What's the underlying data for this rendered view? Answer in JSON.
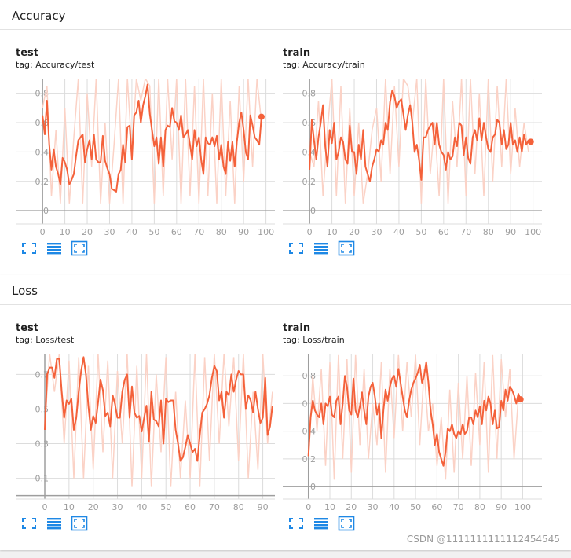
{
  "sections": [
    {
      "title": "Accuracy"
    },
    {
      "title": "Loss"
    }
  ],
  "colors": {
    "line": "#f4613a",
    "line_raw": "#fbd2c6",
    "grid": "#dcdcdc",
    "axis": "#9e9e9e",
    "icon": "#1e88e5"
  },
  "icons": [
    "fit-domain-icon",
    "toggle-log-scale-icon",
    "expand-chart-icon"
  ],
  "cards": [
    {
      "title": "test",
      "tag": "tag: Accuracy/test"
    },
    {
      "title": "train",
      "tag": "tag: Accuracy/train"
    },
    {
      "title": "test",
      "tag": "tag: Loss/test"
    },
    {
      "title": "train",
      "tag": "tag: Loss/train"
    }
  ],
  "watermark": "CSDN @1111111111112454545",
  "chart_data": [
    {
      "type": "line",
      "title": "test",
      "subtitle": "tag: Accuracy/test",
      "xlim": [
        -12,
        104
      ],
      "ylim": [
        -0.09,
        0.9
      ],
      "xticks": [
        0,
        10,
        20,
        30,
        40,
        50,
        60,
        70,
        80,
        90,
        100
      ],
      "yticks": [
        0,
        0.2,
        0.4,
        0.6,
        0.8
      ],
      "ytick_labels": [
        "0",
        "0.2",
        "0.4",
        "0.6",
        "0.8"
      ],
      "grid": true,
      "smoothed_x": [
        0,
        1,
        2,
        3,
        4,
        5,
        6,
        7,
        8,
        9,
        10,
        11,
        12,
        13,
        14,
        15,
        16,
        17,
        18,
        19,
        20,
        21,
        22,
        23,
        24,
        25,
        26,
        27,
        28,
        29,
        30,
        31,
        32,
        33,
        34,
        35,
        36,
        37,
        38,
        39,
        40,
        41,
        42,
        43,
        44,
        45,
        46,
        47,
        48,
        49,
        50,
        51,
        52,
        53,
        54,
        55,
        56,
        57,
        58,
        59,
        60,
        61,
        62,
        63,
        64,
        65,
        66,
        67,
        68,
        69,
        70,
        71,
        72,
        73,
        74,
        75,
        76,
        77,
        78,
        79,
        80,
        81,
        82,
        83,
        84,
        85,
        86,
        87,
        88,
        89,
        90,
        91,
        92,
        93,
        94,
        95,
        96,
        97,
        98
      ],
      "smoothed_y": [
        0.65,
        0.52,
        0.75,
        0.45,
        0.28,
        0.42,
        0.3,
        0.25,
        0.18,
        0.36,
        0.33,
        0.28,
        0.18,
        0.21,
        0.25,
        0.37,
        0.48,
        0.5,
        0.52,
        0.33,
        0.42,
        0.48,
        0.35,
        0.52,
        0.35,
        0.33,
        0.33,
        0.51,
        0.34,
        0.29,
        0.25,
        0.15,
        0.14,
        0.13,
        0.25,
        0.28,
        0.45,
        0.33,
        0.57,
        0.58,
        0.35,
        0.65,
        0.67,
        0.75,
        0.6,
        0.72,
        0.78,
        0.86,
        0.66,
        0.55,
        0.44,
        0.5,
        0.32,
        0.5,
        0.3,
        0.55,
        0.58,
        0.57,
        0.7,
        0.61,
        0.6,
        0.55,
        0.65,
        0.5,
        0.52,
        0.55,
        0.45,
        0.35,
        0.55,
        0.44,
        0.5,
        0.35,
        0.25,
        0.5,
        0.46,
        0.45,
        0.5,
        0.44,
        0.51,
        0.35,
        0.45,
        0.3,
        0.25,
        0.47,
        0.34,
        0.47,
        0.3,
        0.47,
        0.6,
        0.67,
        0.55,
        0.4,
        0.35,
        0.65,
        0.58,
        0.5,
        0.48,
        0.45,
        0.64
      ],
      "raw_x": [
        0,
        2,
        4,
        6,
        8,
        10,
        12,
        14,
        16,
        18,
        20,
        22,
        24,
        26,
        28,
        30,
        32,
        34,
        36,
        38,
        40,
        42,
        44,
        46,
        48,
        50,
        52,
        54,
        56,
        58,
        60,
        62,
        64,
        66,
        68,
        70,
        72,
        74,
        76,
        78,
        80,
        82,
        84,
        86,
        88,
        90,
        92,
        94,
        96,
        98
      ],
      "raw_y": [
        0.7,
        0.85,
        0.1,
        0.55,
        0.05,
        0.7,
        0.05,
        0.5,
        0.92,
        0.05,
        0.8,
        0.3,
        0.9,
        0.05,
        0.6,
        0.05,
        0.45,
        0.9,
        0.05,
        0.95,
        0.4,
        0.9,
        0.75,
        0.95,
        0.85,
        0.05,
        0.95,
        0.1,
        0.9,
        0.35,
        0.95,
        0.05,
        0.9,
        0.1,
        0.85,
        0.05,
        0.95,
        0.1,
        0.8,
        0.05,
        0.92,
        0.1,
        0.75,
        0.05,
        0.85,
        0.2,
        0.9,
        0.3,
        0.95,
        0.6
      ],
      "last_point": {
        "x": 98,
        "y": 0.64
      }
    },
    {
      "type": "line",
      "title": "train",
      "subtitle": "tag: Accuracy/train",
      "xlim": [
        -12,
        104
      ],
      "ylim": [
        -0.09,
        0.9
      ],
      "xticks": [
        0,
        10,
        20,
        30,
        40,
        50,
        60,
        70,
        80,
        90,
        100
      ],
      "yticks": [
        0,
        0.2,
        0.4,
        0.6,
        0.8
      ],
      "ytick_labels": [
        "0",
        "0.2",
        "0.4",
        "0.6",
        "0.8"
      ],
      "grid": true,
      "smoothed_x": [
        0,
        1,
        2,
        3,
        4,
        5,
        6,
        7,
        8,
        9,
        10,
        11,
        12,
        13,
        14,
        15,
        16,
        17,
        18,
        19,
        20,
        21,
        22,
        23,
        24,
        25,
        26,
        27,
        28,
        29,
        30,
        31,
        32,
        33,
        34,
        35,
        36,
        37,
        38,
        39,
        40,
        41,
        42,
        43,
        44,
        45,
        46,
        47,
        48,
        49,
        50,
        51,
        52,
        53,
        54,
        55,
        56,
        57,
        58,
        59,
        60,
        61,
        62,
        63,
        64,
        65,
        66,
        67,
        68,
        69,
        70,
        71,
        72,
        73,
        74,
        75,
        76,
        77,
        78,
        79,
        80,
        81,
        82,
        83,
        84,
        85,
        86,
        87,
        88,
        89,
        90,
        91,
        92,
        93,
        94,
        95,
        96,
        97,
        98,
        99
      ],
      "smoothed_y": [
        0.28,
        0.62,
        0.48,
        0.35,
        0.5,
        0.6,
        0.72,
        0.44,
        0.3,
        0.55,
        0.46,
        0.6,
        0.35,
        0.4,
        0.5,
        0.47,
        0.35,
        0.32,
        0.58,
        0.4,
        0.4,
        0.25,
        0.45,
        0.35,
        0.55,
        0.3,
        0.25,
        0.2,
        0.3,
        0.35,
        0.42,
        0.4,
        0.48,
        0.45,
        0.6,
        0.55,
        0.74,
        0.82,
        0.78,
        0.7,
        0.74,
        0.76,
        0.66,
        0.55,
        0.65,
        0.72,
        0.6,
        0.4,
        0.45,
        0.35,
        0.21,
        0.5,
        0.5,
        0.55,
        0.58,
        0.6,
        0.45,
        0.6,
        0.45,
        0.4,
        0.38,
        0.28,
        0.4,
        0.35,
        0.37,
        0.5,
        0.44,
        0.6,
        0.58,
        0.38,
        0.5,
        0.36,
        0.32,
        0.5,
        0.55,
        0.48,
        0.63,
        0.48,
        0.6,
        0.5,
        0.42,
        0.4,
        0.5,
        0.52,
        0.62,
        0.6,
        0.45,
        0.55,
        0.42,
        0.45,
        0.6,
        0.45,
        0.48,
        0.4,
        0.5,
        0.4,
        0.52,
        0.45,
        0.48,
        0.47
      ],
      "raw_x": [
        0,
        2,
        4,
        6,
        8,
        10,
        12,
        14,
        16,
        18,
        20,
        22,
        24,
        26,
        28,
        30,
        32,
        34,
        36,
        38,
        40,
        42,
        44,
        46,
        48,
        50,
        52,
        54,
        56,
        58,
        60,
        62,
        64,
        66,
        68,
        70,
        72,
        74,
        76,
        78,
        80,
        82,
        84,
        86,
        88,
        90,
        92,
        94,
        96,
        98
      ],
      "raw_y": [
        0.4,
        0.3,
        0.75,
        0.1,
        0.55,
        0.9,
        0.1,
        0.85,
        0.05,
        0.7,
        0.1,
        0.6,
        0.05,
        0.25,
        0.55,
        0.7,
        0.2,
        0.9,
        0.25,
        0.85,
        0.3,
        0.95,
        0.85,
        0.6,
        0.95,
        0.05,
        0.9,
        0.25,
        0.6,
        0.1,
        0.95,
        0.05,
        0.75,
        0.3,
        0.9,
        0.1,
        0.95,
        0.25,
        0.8,
        0.1,
        0.9,
        0.2,
        0.85,
        0.3,
        0.9,
        0.25,
        0.7,
        0.3,
        0.6,
        0.4
      ],
      "last_point": {
        "x": 99,
        "y": 0.47
      }
    },
    {
      "type": "line",
      "title": "test",
      "subtitle": "tag: Loss/test",
      "xlim": [
        -12,
        95
      ],
      "ylim": [
        -0.02,
        0.82
      ],
      "xticks": [
        0,
        10,
        20,
        30,
        40,
        50,
        60,
        70,
        80,
        90
      ],
      "yticks": [
        0.1,
        0.3,
        0.5,
        0.7
      ],
      "ytick_labels": [
        "0.1",
        "0.3",
        "0.5",
        "0.7"
      ],
      "grid": true,
      "smoothed_x": [
        0,
        1,
        2,
        3,
        4,
        5,
        6,
        7,
        8,
        9,
        10,
        11,
        12,
        13,
        14,
        15,
        16,
        17,
        18,
        19,
        20,
        21,
        22,
        23,
        24,
        25,
        26,
        27,
        28,
        29,
        30,
        31,
        32,
        33,
        34,
        35,
        36,
        37,
        38,
        39,
        40,
        41,
        42,
        43,
        44,
        45,
        46,
        47,
        48,
        49,
        50,
        51,
        52,
        53,
        54,
        55,
        56,
        57,
        58,
        59,
        60,
        61,
        62,
        63,
        64,
        65,
        66,
        67,
        68,
        69,
        70,
        71,
        72,
        73,
        74,
        75,
        76,
        77,
        78,
        79,
        80,
        81,
        82,
        83,
        84,
        85,
        86,
        87,
        88,
        89,
        90,
        91,
        92,
        93,
        94
      ],
      "smoothed_y": [
        0.38,
        0.7,
        0.74,
        0.74,
        0.68,
        0.79,
        0.79,
        0.6,
        0.45,
        0.55,
        0.53,
        0.56,
        0.38,
        0.45,
        0.6,
        0.72,
        0.8,
        0.7,
        0.52,
        0.38,
        0.46,
        0.42,
        0.54,
        0.67,
        0.61,
        0.46,
        0.48,
        0.4,
        0.58,
        0.53,
        0.45,
        0.45,
        0.6,
        0.67,
        0.7,
        0.45,
        0.63,
        0.48,
        0.45,
        0.46,
        0.37,
        0.45,
        0.52,
        0.31,
        0.6,
        0.44,
        0.43,
        0.4,
        0.55,
        0.3,
        0.56,
        0.54,
        0.55,
        0.55,
        0.38,
        0.3,
        0.2,
        0.22,
        0.28,
        0.35,
        0.3,
        0.25,
        0.27,
        0.2,
        0.35,
        0.48,
        0.5,
        0.53,
        0.58,
        0.68,
        0.75,
        0.72,
        0.55,
        0.6,
        0.45,
        0.6,
        0.58,
        0.7,
        0.6,
        0.67,
        0.72,
        0.7,
        0.7,
        0.5,
        0.58,
        0.55,
        0.48,
        0.6,
        0.5,
        0.42,
        0.45,
        0.68,
        0.35,
        0.4,
        0.52
      ],
      "raw_x": [
        0,
        2,
        4,
        6,
        8,
        10,
        12,
        14,
        16,
        18,
        20,
        22,
        24,
        26,
        28,
        30,
        32,
        34,
        36,
        38,
        40,
        42,
        44,
        46,
        48,
        50,
        52,
        54,
        56,
        58,
        60,
        62,
        64,
        66,
        68,
        70,
        72,
        74,
        76,
        78,
        80,
        82,
        84,
        86,
        88,
        90,
        92,
        94
      ],
      "raw_y": [
        0.4,
        0.82,
        0.6,
        0.82,
        0.3,
        0.78,
        0.1,
        0.8,
        0.1,
        0.75,
        0.15,
        0.82,
        0.25,
        0.78,
        0.1,
        0.72,
        0.3,
        0.82,
        0.05,
        0.75,
        0.1,
        0.82,
        0.05,
        0.7,
        0.25,
        0.8,
        0.05,
        0.6,
        0.1,
        0.55,
        0.1,
        0.82,
        0.05,
        0.8,
        0.2,
        0.82,
        0.3,
        0.82,
        0.4,
        0.8,
        0.2,
        0.82,
        0.1,
        0.6,
        0.15,
        0.82,
        0.3,
        0.6
      ],
      "last_point": null
    },
    {
      "type": "line",
      "title": "train",
      "subtitle": "tag: Loss/train",
      "xlim": [
        -12,
        109
      ],
      "ylim": [
        -0.09,
        0.96
      ],
      "xticks": [
        0,
        10,
        20,
        30,
        40,
        50,
        60,
        70,
        80,
        90,
        100
      ],
      "yticks": [
        0,
        0.2,
        0.4,
        0.6,
        0.8
      ],
      "ytick_labels": [
        "0",
        "0.2",
        "0.4",
        "0.6",
        "0.8"
      ],
      "grid": true,
      "smoothed_x": [
        0,
        1,
        2,
        3,
        4,
        5,
        6,
        7,
        8,
        9,
        10,
        11,
        12,
        13,
        14,
        15,
        16,
        17,
        18,
        19,
        20,
        21,
        22,
        23,
        24,
        25,
        26,
        27,
        28,
        29,
        30,
        31,
        32,
        33,
        34,
        35,
        36,
        37,
        38,
        39,
        40,
        41,
        42,
        43,
        44,
        45,
        46,
        47,
        48,
        49,
        50,
        51,
        52,
        53,
        54,
        55,
        56,
        57,
        58,
        59,
        60,
        61,
        62,
        63,
        64,
        65,
        66,
        67,
        68,
        69,
        70,
        71,
        72,
        73,
        74,
        75,
        76,
        77,
        78,
        79,
        80,
        81,
        82,
        83,
        84,
        85,
        86,
        87,
        88,
        89,
        90,
        91,
        92,
        93,
        94,
        95,
        96,
        97,
        98,
        99
      ],
      "smoothed_y": [
        0.22,
        0.5,
        0.62,
        0.55,
        0.52,
        0.5,
        0.6,
        0.45,
        0.6,
        0.58,
        0.65,
        0.52,
        0.5,
        0.62,
        0.65,
        0.45,
        0.6,
        0.8,
        0.72,
        0.55,
        0.52,
        0.78,
        0.55,
        0.5,
        0.58,
        0.68,
        0.55,
        0.45,
        0.65,
        0.72,
        0.75,
        0.65,
        0.52,
        0.6,
        0.35,
        0.55,
        0.7,
        0.62,
        0.72,
        0.78,
        0.8,
        0.72,
        0.85,
        0.75,
        0.65,
        0.55,
        0.5,
        0.62,
        0.7,
        0.75,
        0.78,
        0.82,
        0.88,
        0.75,
        0.8,
        0.9,
        0.75,
        0.55,
        0.45,
        0.3,
        0.38,
        0.25,
        0.2,
        0.15,
        0.25,
        0.42,
        0.4,
        0.45,
        0.38,
        0.35,
        0.4,
        0.38,
        0.45,
        0.38,
        0.4,
        0.5,
        0.5,
        0.45,
        0.55,
        0.5,
        0.58,
        0.45,
        0.62,
        0.55,
        0.65,
        0.6,
        0.45,
        0.55,
        0.42,
        0.43,
        0.62,
        0.55,
        0.7,
        0.62,
        0.72,
        0.7,
        0.66,
        0.6,
        0.67,
        0.63
      ],
      "raw_x": [
        0,
        2,
        4,
        6,
        8,
        10,
        12,
        14,
        16,
        18,
        20,
        22,
        24,
        26,
        28,
        30,
        32,
        34,
        36,
        38,
        40,
        42,
        44,
        46,
        48,
        50,
        52,
        54,
        56,
        58,
        60,
        62,
        64,
        66,
        68,
        70,
        72,
        74,
        76,
        78,
        80,
        82,
        84,
        86,
        88,
        90,
        92,
        94,
        96,
        98
      ],
      "raw_y": [
        0.22,
        0.8,
        0.4,
        0.85,
        0.15,
        0.9,
        0.05,
        0.95,
        0.2,
        0.92,
        0.1,
        0.95,
        0.3,
        0.85,
        0.2,
        0.6,
        0.3,
        0.9,
        0.1,
        0.85,
        0.35,
        0.95,
        0.4,
        0.9,
        0.5,
        0.95,
        0.3,
        0.85,
        0.4,
        0.6,
        0.15,
        0.5,
        0.05,
        0.7,
        0.1,
        0.75,
        0.2,
        0.8,
        0.15,
        0.82,
        0.3,
        0.9,
        0.1,
        0.95,
        0.2,
        0.92,
        0.5,
        0.85,
        0.2,
        0.65
      ],
      "last_point": {
        "x": 99,
        "y": 0.63
      }
    }
  ]
}
